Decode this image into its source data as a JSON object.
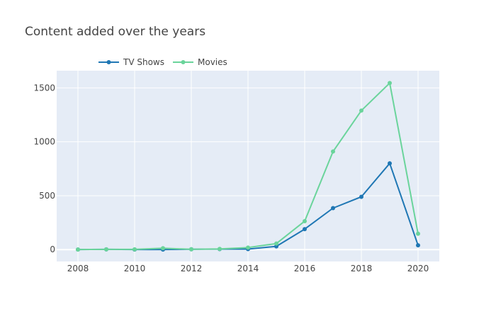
{
  "chart_data": {
    "type": "line",
    "title": "Content added over the years",
    "xlabel": "",
    "ylabel": "",
    "x": [
      2008,
      2009,
      2010,
      2011,
      2012,
      2013,
      2014,
      2015,
      2016,
      2017,
      2018,
      2019,
      2020
    ],
    "series": [
      {
        "name": "TV Shows",
        "color": "#1f77b4",
        "values": [
          1,
          2,
          1,
          1,
          3,
          5,
          5,
          30,
          190,
          385,
          490,
          800,
          40
        ]
      },
      {
        "name": "Movies",
        "color": "#6ad49b",
        "values": [
          1,
          2,
          2,
          13,
          3,
          6,
          19,
          56,
          264,
          910,
          1290,
          1545,
          147
        ]
      }
    ],
    "xlim": [
      2007.25,
      2020.75
    ],
    "ylim": [
      -110,
      1660
    ],
    "xticks": [
      2008,
      2010,
      2012,
      2014,
      2016,
      2018,
      2020
    ],
    "yticks": [
      0,
      500,
      1000,
      1500
    ],
    "grid": true,
    "legend": "top-left, horizontal",
    "plot_bg": "#e5ecf6",
    "grid_color": "#ffffff"
  }
}
